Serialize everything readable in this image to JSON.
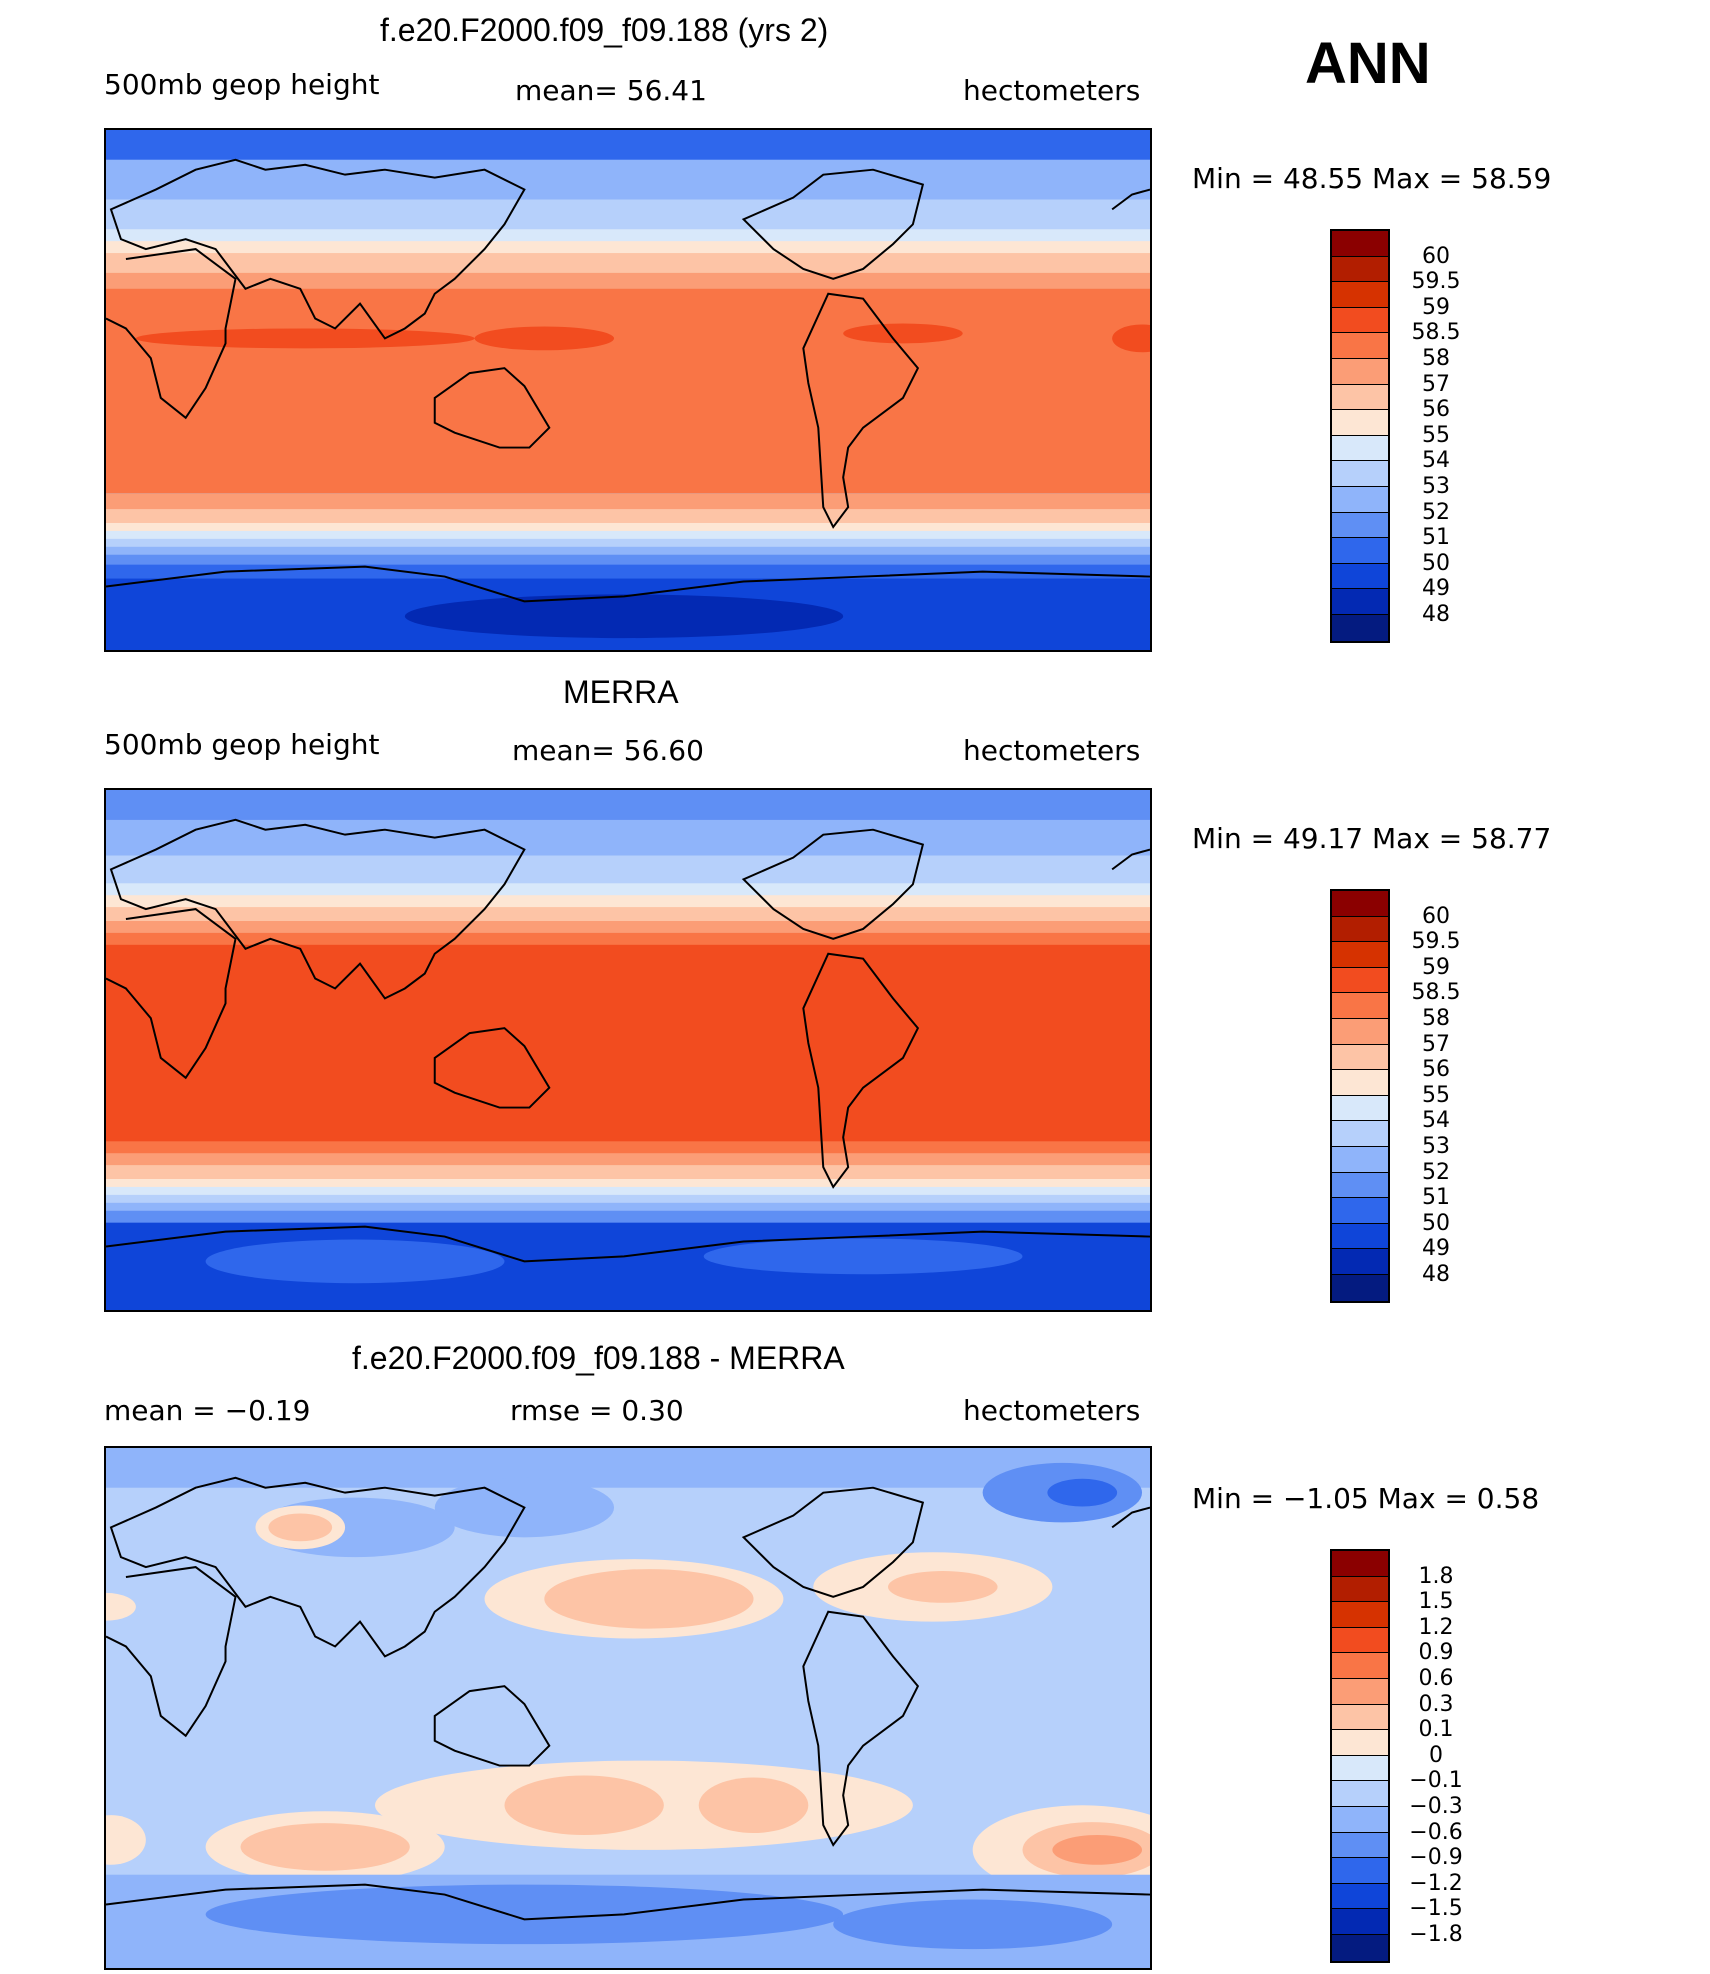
{
  "header": {
    "season": "ANN"
  },
  "panels": [
    {
      "title": "f.e20.F2000.f09_f09.188 (yrs 2)",
      "left_label": "500mb geop height",
      "center_label": "mean=   56.41",
      "units": "hectometers",
      "minmax": "Min =   48.55  Max =   58.59",
      "levels": [
        "60",
        "59.5",
        "59",
        "58.5",
        "58",
        "57",
        "56",
        "55",
        "54",
        "53",
        "52",
        "51",
        "50",
        "49",
        "48"
      ],
      "colors": [
        "#8b0000",
        "#b21e00",
        "#d63200",
        "#f24c1f",
        "#f97546",
        "#fb9d76",
        "#fdc4a6",
        "#fde6d4",
        "#d8e8fa",
        "#b6d0fb",
        "#8fb4fa",
        "#5f8ff4",
        "#2f67ec",
        "#0f45d9",
        "#0329b3",
        "#041b80"
      ]
    },
    {
      "title": "MERRA",
      "left_label": "500mb geop height",
      "center_label": "mean=   56.60",
      "units": "hectometers",
      "minmax": "Min =   49.17  Max =   58.77",
      "levels": [
        "60",
        "59.5",
        "59",
        "58.5",
        "58",
        "57",
        "56",
        "55",
        "54",
        "53",
        "52",
        "51",
        "50",
        "49",
        "48"
      ],
      "colors": [
        "#8b0000",
        "#b21e00",
        "#d63200",
        "#f24c1f",
        "#f97546",
        "#fb9d76",
        "#fdc4a6",
        "#fde6d4",
        "#d8e8fa",
        "#b6d0fb",
        "#8fb4fa",
        "#5f8ff4",
        "#2f67ec",
        "#0f45d9",
        "#0329b3",
        "#041b80"
      ]
    },
    {
      "title": "f.e20.F2000.f09_f09.188 - MERRA",
      "left_label": "mean =   −0.19",
      "center_label": "rmse =    0.30",
      "units": "hectometers",
      "minmax": "Min =   −1.05  Max =    0.58",
      "levels": [
        "1.8",
        "1.5",
        "1.2",
        "0.9",
        "0.6",
        "0.3",
        "0.1",
        "0",
        "−0.1",
        "−0.3",
        "−0.6",
        "−0.9",
        "−1.2",
        "−1.5",
        "−1.8"
      ],
      "colors": [
        "#8b0000",
        "#b21e00",
        "#d63200",
        "#f24c1f",
        "#f97546",
        "#fb9d76",
        "#fdc4a6",
        "#fde6d4",
        "#d8e8fa",
        "#b6d0fb",
        "#8fb4fa",
        "#5f8ff4",
        "#2f67ec",
        "#0f45d9",
        "#0329b3",
        "#041b80"
      ]
    }
  ]
}
